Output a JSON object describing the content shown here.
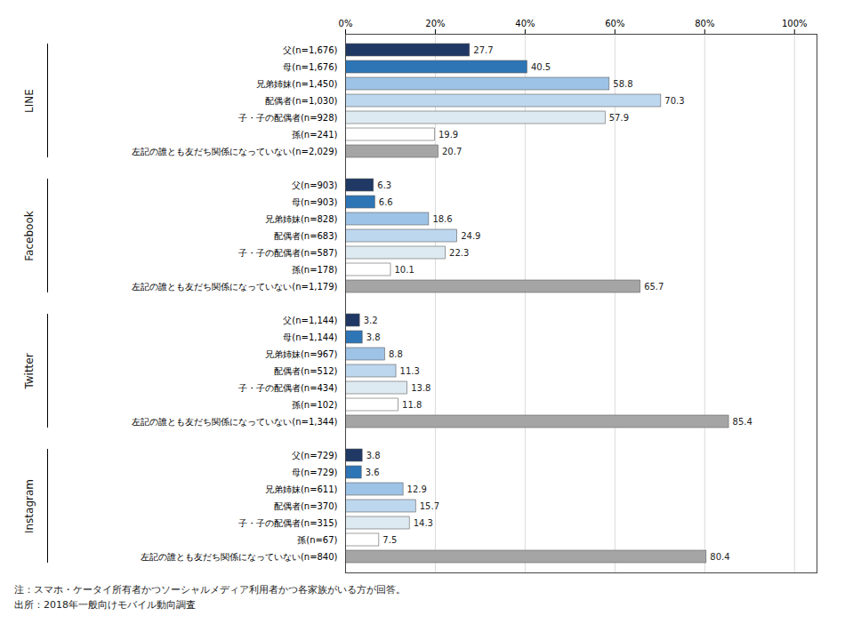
{
  "chart_data": {
    "type": "bar",
    "orientation": "horizontal",
    "data_labels": true,
    "grid": true,
    "annotations": [
      "注：スマホ・ケータイ所有者かつソーシャルメディア利用者かつ各家族がいる方が回答。",
      "出所：2018年一般向けモバイル動向調査"
    ],
    "xlim": [
      0,
      105
    ],
    "xticks": [
      {
        "value": 0,
        "label": "0%"
      },
      {
        "value": 20,
        "label": "20%"
      },
      {
        "value": 40,
        "label": "40%"
      },
      {
        "value": 60,
        "label": "60%"
      },
      {
        "value": 80,
        "label": "80%"
      },
      {
        "value": 100,
        "label": "100%"
      }
    ],
    "groups": [
      {
        "name": "LINE",
        "categories": [
          "父(n=1,676)",
          "母(n=1,676)",
          "兄弟姉妹(n=1,450)",
          "配偶者(n=1,030)",
          "子・子の配偶者(n=928)",
          "孫(n=241)",
          "左記の誰とも友だち関係になっていない(n=2,029)"
        ],
        "values": [
          27.7,
          40.5,
          58.8,
          70.3,
          57.9,
          19.9,
          20.7
        ],
        "colors": [
          "#1f3864",
          "#2e75b6",
          "#9dc3e6",
          "#bdd7ee",
          "#deeaf1",
          "#ffffff",
          "#a5a5a5"
        ]
      },
      {
        "name": "Facebook",
        "categories": [
          "父(n=903)",
          "母(n=903)",
          "兄弟姉妹(n=828)",
          "配偶者(n=683)",
          "子・子の配偶者(n=587)",
          "孫(n=178)",
          "左記の誰とも友だち関係になっていない(n=1,179)"
        ],
        "values": [
          6.3,
          6.6,
          18.6,
          24.9,
          22.3,
          10.1,
          65.7
        ],
        "colors": [
          "#1f3864",
          "#2e75b6",
          "#9dc3e6",
          "#bdd7ee",
          "#deeaf1",
          "#ffffff",
          "#a5a5a5"
        ]
      },
      {
        "name": "Twitter",
        "categories": [
          "父(n=1,144)",
          "母(n=1,144)",
          "兄弟姉妹(n=967)",
          "配偶者(n=512)",
          "子・子の配偶者(n=434)",
          "孫(n=102)",
          "左記の誰とも友だち関係になっていない(n=1,344)"
        ],
        "values": [
          3.2,
          3.8,
          8.8,
          11.3,
          13.8,
          11.8,
          85.4
        ],
        "colors": [
          "#1f3864",
          "#2e75b6",
          "#9dc3e6",
          "#bdd7ee",
          "#deeaf1",
          "#ffffff",
          "#a5a5a5"
        ]
      },
      {
        "name": "Instagram",
        "categories": [
          "父(n=729)",
          "母(n=729)",
          "兄弟姉妹(n=611)",
          "配偶者(n=370)",
          "子・子の配偶者(n=315)",
          "孫(n=67)",
          "左記の誰とも友だち関係になっていない(n=840)"
        ],
        "values": [
          3.8,
          3.6,
          12.9,
          15.7,
          14.3,
          7.5,
          80.4
        ],
        "colors": [
          "#1f3864",
          "#2e75b6",
          "#9dc3e6",
          "#bdd7ee",
          "#deeaf1",
          "#ffffff",
          "#a5a5a5"
        ]
      }
    ]
  }
}
